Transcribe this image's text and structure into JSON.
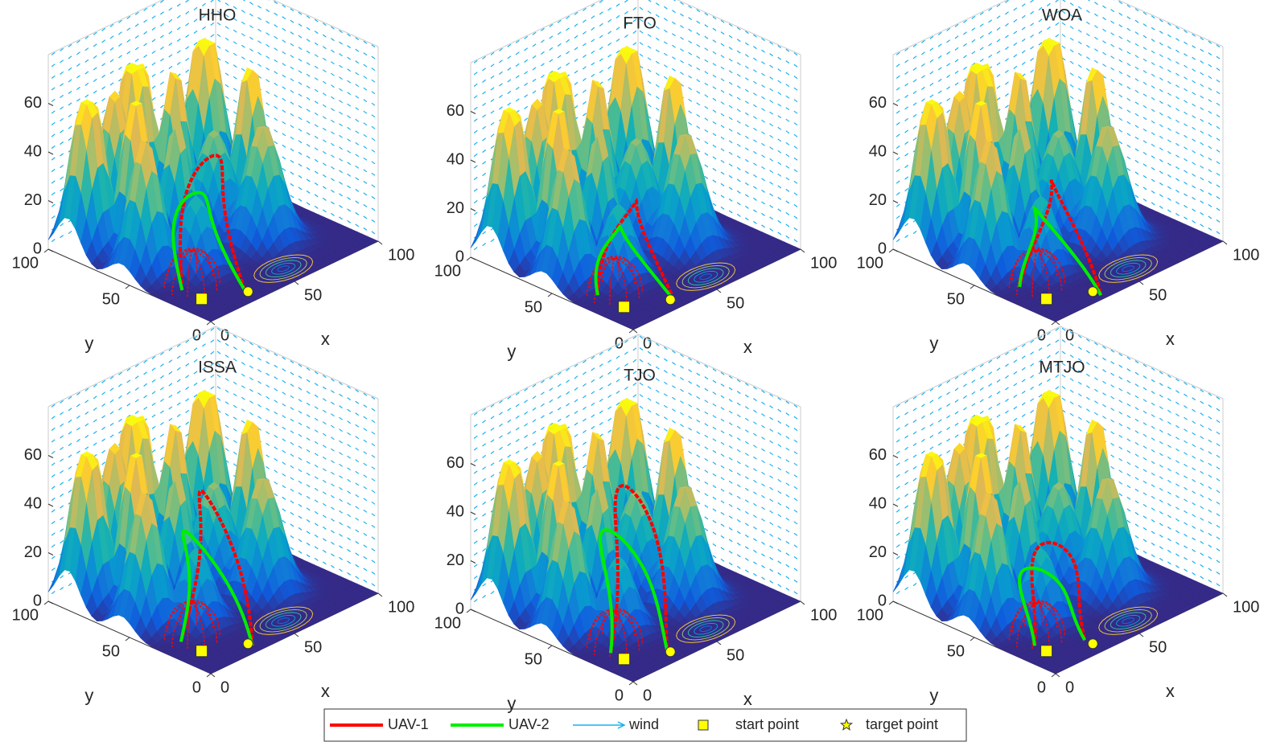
{
  "chart_data": [
    {
      "type": "surface",
      "title": "HHO",
      "xlabel": "x",
      "ylabel": "y",
      "xlim": [
        0,
        100
      ],
      "ylim": [
        0,
        100
      ],
      "zlim": [
        0,
        80
      ],
      "xticks": [
        0,
        50,
        100
      ],
      "yticks": [
        0,
        50,
        100
      ],
      "zticks": [
        0,
        20,
        40,
        60
      ]
    },
    {
      "type": "surface",
      "title": "FTO",
      "xlabel": "x",
      "ylabel": "y",
      "xlim": [
        0,
        100
      ],
      "ylim": [
        0,
        100
      ],
      "zlim": [
        0,
        80
      ],
      "xticks": [
        0,
        50,
        100
      ],
      "yticks": [
        0,
        50,
        100
      ],
      "zticks": [
        0,
        20,
        40,
        60
      ]
    },
    {
      "type": "surface",
      "title": "WOA",
      "xlabel": "x",
      "ylabel": "y",
      "xlim": [
        0,
        100
      ],
      "ylim": [
        0,
        100
      ],
      "zlim": [
        0,
        80
      ],
      "xticks": [
        0,
        50,
        100
      ],
      "yticks": [
        0,
        50,
        100
      ],
      "zticks": [
        0,
        20,
        40,
        60
      ]
    },
    {
      "type": "surface",
      "title": "ISSA",
      "xlabel": "x",
      "ylabel": "y",
      "xlim": [
        0,
        100
      ],
      "ylim": [
        0,
        100
      ],
      "zlim": [
        0,
        80
      ],
      "xticks": [
        0,
        50,
        100
      ],
      "yticks": [
        0,
        50,
        100
      ],
      "zticks": [
        0,
        20,
        40,
        60
      ]
    },
    {
      "type": "surface",
      "title": "TJO",
      "xlabel": "x",
      "ylabel": "y",
      "xlim": [
        0,
        100
      ],
      "ylim": [
        0,
        100
      ],
      "zlim": [
        0,
        80
      ],
      "xticks": [
        0,
        50,
        100
      ],
      "yticks": [
        0,
        50,
        100
      ],
      "zticks": [
        0,
        20,
        40,
        60
      ]
    },
    {
      "type": "surface",
      "title": "MTJO",
      "xlabel": "x",
      "ylabel": "y",
      "xlim": [
        0,
        100
      ],
      "ylim": [
        0,
        100
      ],
      "zlim": [
        0,
        80
      ],
      "xticks": [
        0,
        50,
        100
      ],
      "yticks": [
        0,
        50,
        100
      ],
      "zticks": [
        0,
        20,
        40,
        60
      ]
    }
  ],
  "legend": [
    {
      "name": "UAV-1",
      "color": "#ff0000"
    },
    {
      "name": "UAV-2",
      "color": "#00ee00"
    },
    {
      "name": "wind",
      "color": "#1ab0ee"
    },
    {
      "name": "start point",
      "color": "#ffff00"
    },
    {
      "name": "target point",
      "color": "#ffff00"
    }
  ]
}
